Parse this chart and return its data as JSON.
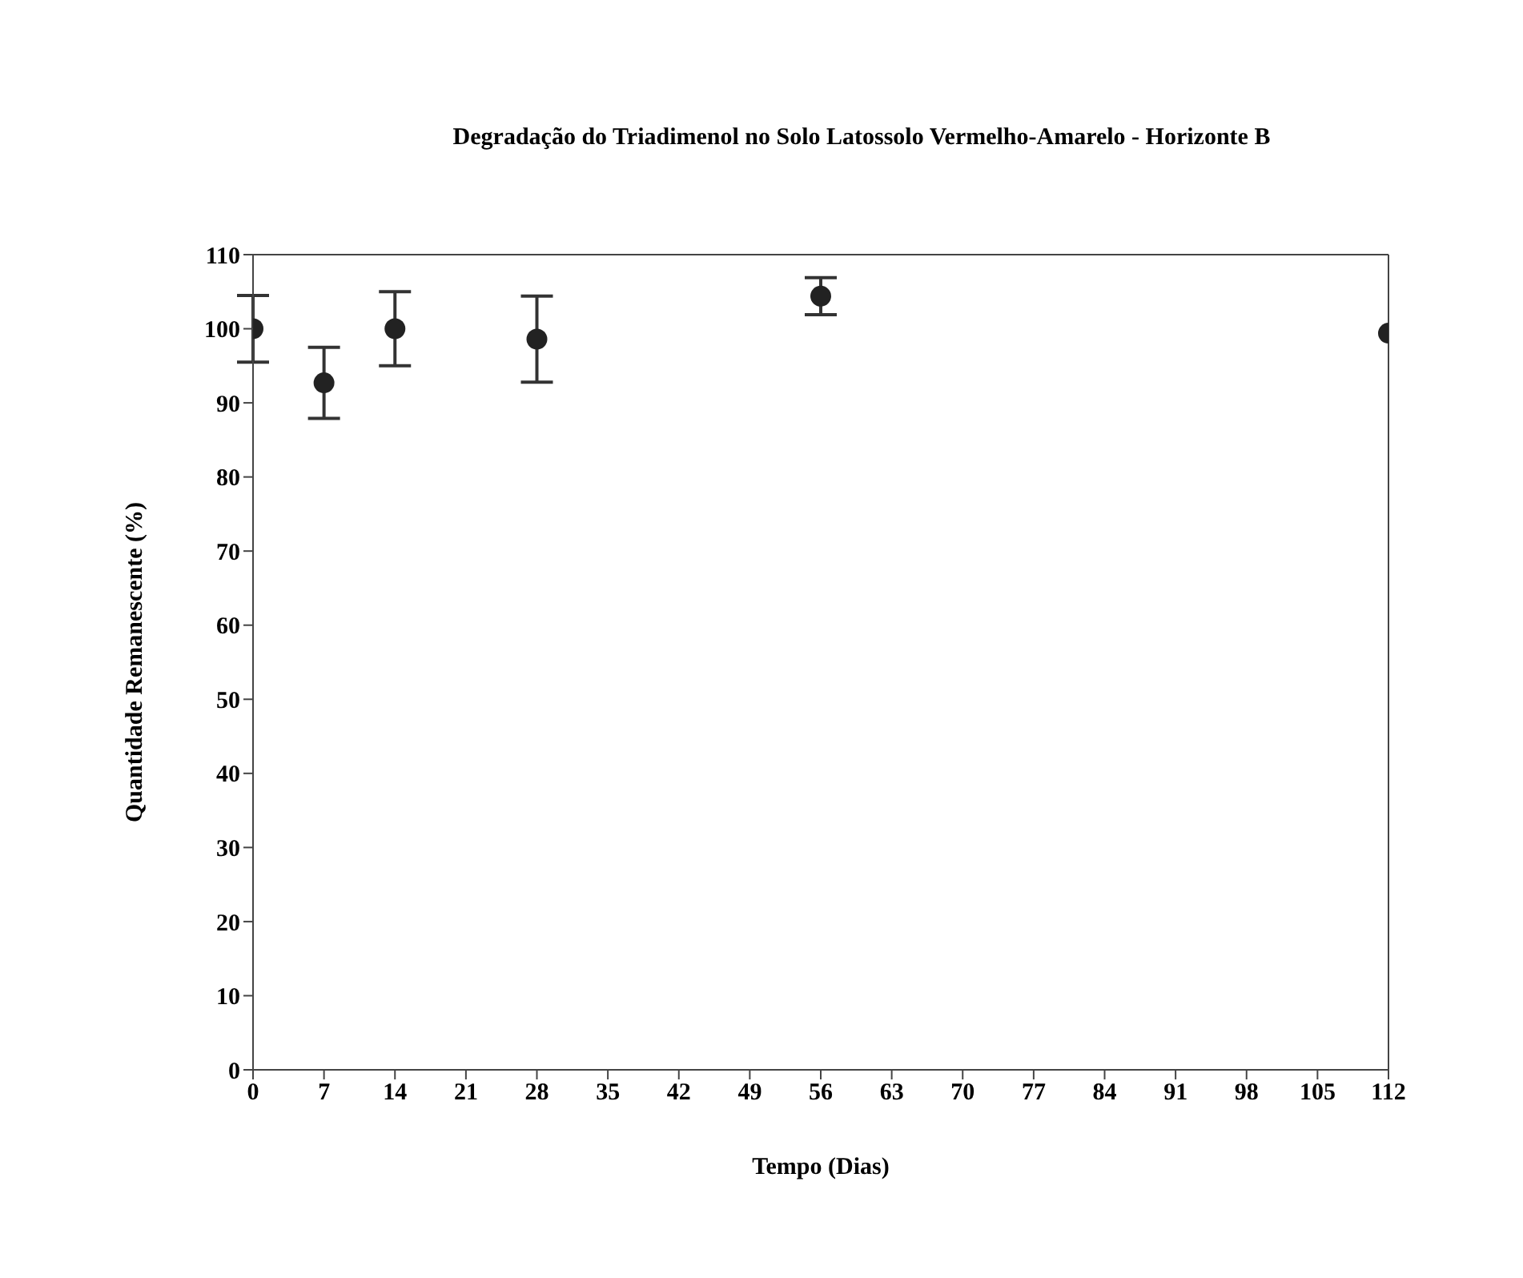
{
  "chart_data": {
    "type": "scatter",
    "title": "Degradação do Triadimenol no Solo Latossolo Vermelho-Amarelo - Horizonte B",
    "xlabel": "Tempo (Dias)",
    "ylabel": "Quantidade Remanescente (%)",
    "x": [
      0,
      7,
      14,
      28,
      56,
      112
    ],
    "series": [
      {
        "color": "#222222",
        "values": [
          100,
          92.7,
          100,
          98.6,
          104.4,
          99.4
        ],
        "errors": [
          4.5,
          4.8,
          5,
          5.8,
          2.5,
          null
        ]
      }
    ],
    "xlim": [
      0,
      112
    ],
    "xticks": [
      0,
      7,
      14,
      21,
      28,
      35,
      42,
      49,
      56,
      63,
      70,
      77,
      84,
      91,
      98,
      105,
      112
    ],
    "ylim": [
      0,
      110
    ],
    "yticks": [
      0,
      10,
      20,
      30,
      40,
      50,
      60,
      70,
      80,
      90,
      100,
      110
    ],
    "marker": "circle",
    "grid": false,
    "legend": false
  }
}
